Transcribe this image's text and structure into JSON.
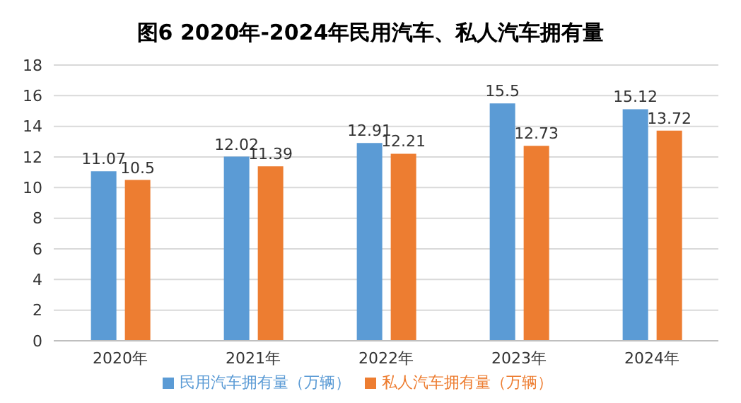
{
  "chart_data": {
    "type": "bar",
    "title": "图6 2020年-2024年民用汽车、私人汽车拥有量",
    "categories": [
      "2020年",
      "2021年",
      "2022年",
      "2023年",
      "2024年"
    ],
    "series": [
      {
        "name": "民用汽车拥有量（万辆）",
        "color": "#5b9bd5",
        "values": [
          11.07,
          12.02,
          12.91,
          15.5,
          15.12
        ]
      },
      {
        "name": "私人汽车拥有量（万辆）",
        "color": "#ed7d31",
        "values": [
          10.5,
          11.39,
          12.21,
          12.73,
          13.72
        ]
      }
    ],
    "ylim": [
      0,
      18
    ],
    "yticks": [
      0,
      2,
      4,
      6,
      8,
      10,
      12,
      14,
      16,
      18
    ],
    "grid": "y",
    "legend": "bottom",
    "data_labels": true
  }
}
